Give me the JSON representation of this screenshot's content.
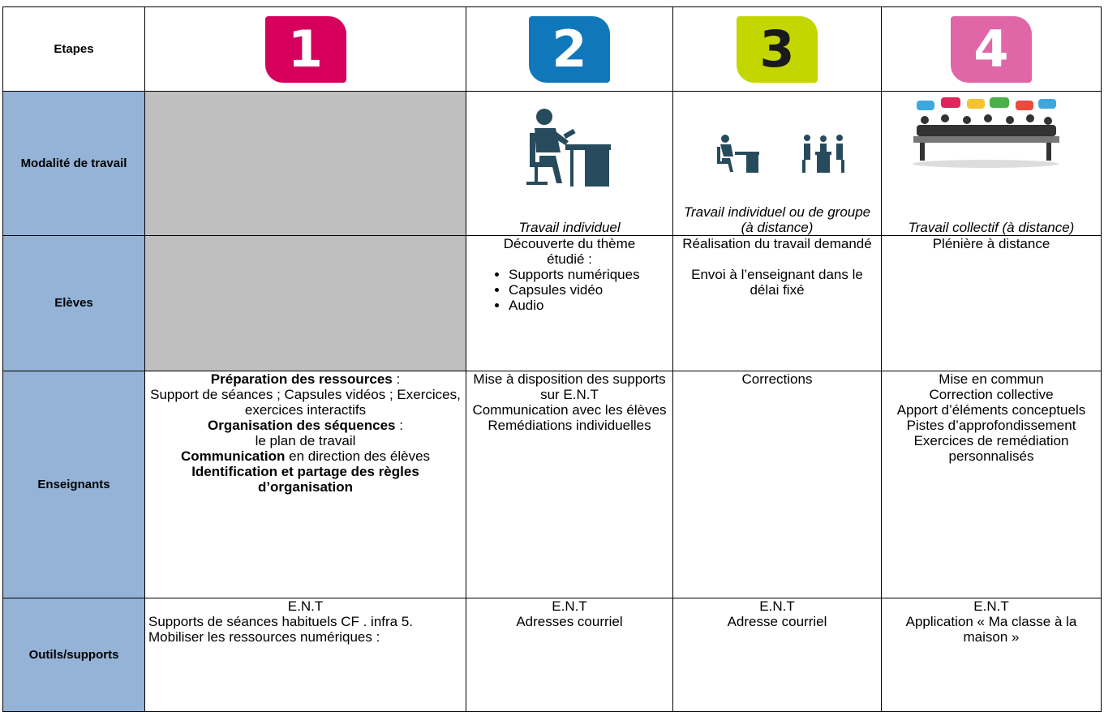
{
  "table": {
    "header": {
      "label": "Etapes",
      "steps": [
        "1",
        "2",
        "3",
        "4"
      ]
    },
    "rows": [
      {
        "label": "Modalité de travail",
        "cells": [
          {
            "grey": true
          },
          {
            "italic": true,
            "blocks": [
              [
                {
                  "text": "Travail individuel"
                }
              ]
            ]
          },
          {
            "italic": true,
            "blocks": [
              [
                {
                  "text": "Travail individuel ou de groupe (à distance)"
                }
              ]
            ]
          },
          {
            "italic": true,
            "blocks": [
              [
                {
                  "text": "Travail collectif (à distance)"
                }
              ]
            ]
          }
        ]
      },
      {
        "label": "Elèves",
        "cells": [
          {
            "grey": true
          },
          {
            "blocks": [
              [
                {
                  "text": "Découverte du thème étudié :"
                }
              ],
              {
                "list": [
                  "Supports numériques",
                  "Capsules vidéo",
                  "Audio"
                ]
              }
            ]
          },
          {
            "blocks": [
              [
                {
                  "text": "Réalisation du travail demandé"
                }
              ],
              [
                {
                  "text": "Envoi à l’enseignant dans le délai fixé"
                }
              ]
            ]
          },
          {
            "blocks": [
              [
                {
                  "text": "Plénière à distance"
                }
              ]
            ]
          }
        ]
      },
      {
        "label": "Enseignants",
        "cells": [
          {
            "blocks": [
              [
                {
                  "text": "Préparation des ressources",
                  "bold": true
                },
                {
                  "text": " :"
                }
              ],
              [
                {
                  "text": "Support de séances ; Capsules vidéos ; Exercices, exercices interactifs"
                }
              ],
              [
                {
                  "text": "Organisation des séquences",
                  "bold": true
                },
                {
                  "text": " :"
                }
              ],
              [
                {
                  "text": "le plan de travail"
                }
              ],
              [
                {
                  "text": "Communication",
                  "bold": true
                },
                {
                  "text": " en direction des élèves"
                }
              ],
              [
                {
                  "text": "Identification et partage des règles d’organisation",
                  "bold": true
                }
              ]
            ]
          },
          {
            "blocks": [
              [
                {
                  "text": "Mise à disposition des supports sur E.N.T"
                }
              ],
              [
                {
                  "text": "Communication avec les élèves"
                }
              ],
              [
                {
                  "text": "Remédiations individuelles"
                }
              ]
            ]
          },
          {
            "blocks": [
              [
                {
                  "text": "Corrections"
                }
              ]
            ]
          },
          {
            "blocks": [
              [
                {
                  "text": "Mise en commun"
                }
              ],
              [
                {
                  "text": "Correction collective"
                }
              ],
              [
                {
                  "text": "Apport d’éléments conceptuels"
                }
              ],
              [
                {
                  "text": "Pistes d’approfondissement"
                }
              ],
              [
                {
                  "text": "Exercices de remédiation personnalisés"
                }
              ]
            ]
          }
        ]
      },
      {
        "label": "Outils/supports",
        "cells": [
          {
            "blocks": [
              [
                {
                  "text": "E.N.T"
                }
              ],
              [
                {
                  "text": "Supports de séances habituels CF . infra 5. Mobiliser les ressources numériques :"
                }
              ]
            ]
          },
          {
            "blocks": [
              [
                {
                  "text": "E.N.T"
                }
              ],
              [
                {
                  "text": "Adresses courriel"
                }
              ]
            ]
          },
          {
            "blocks": [
              [
                {
                  "text": "E.N.T"
                }
              ],
              [
                {
                  "text": "Adresse courriel"
                }
              ]
            ]
          },
          {
            "blocks": [
              [
                {
                  "text": "E.N.T"
                }
              ],
              [
                {
                  "text": "Application « Ma classe à la maison »"
                }
              ]
            ]
          }
        ]
      }
    ]
  }
}
